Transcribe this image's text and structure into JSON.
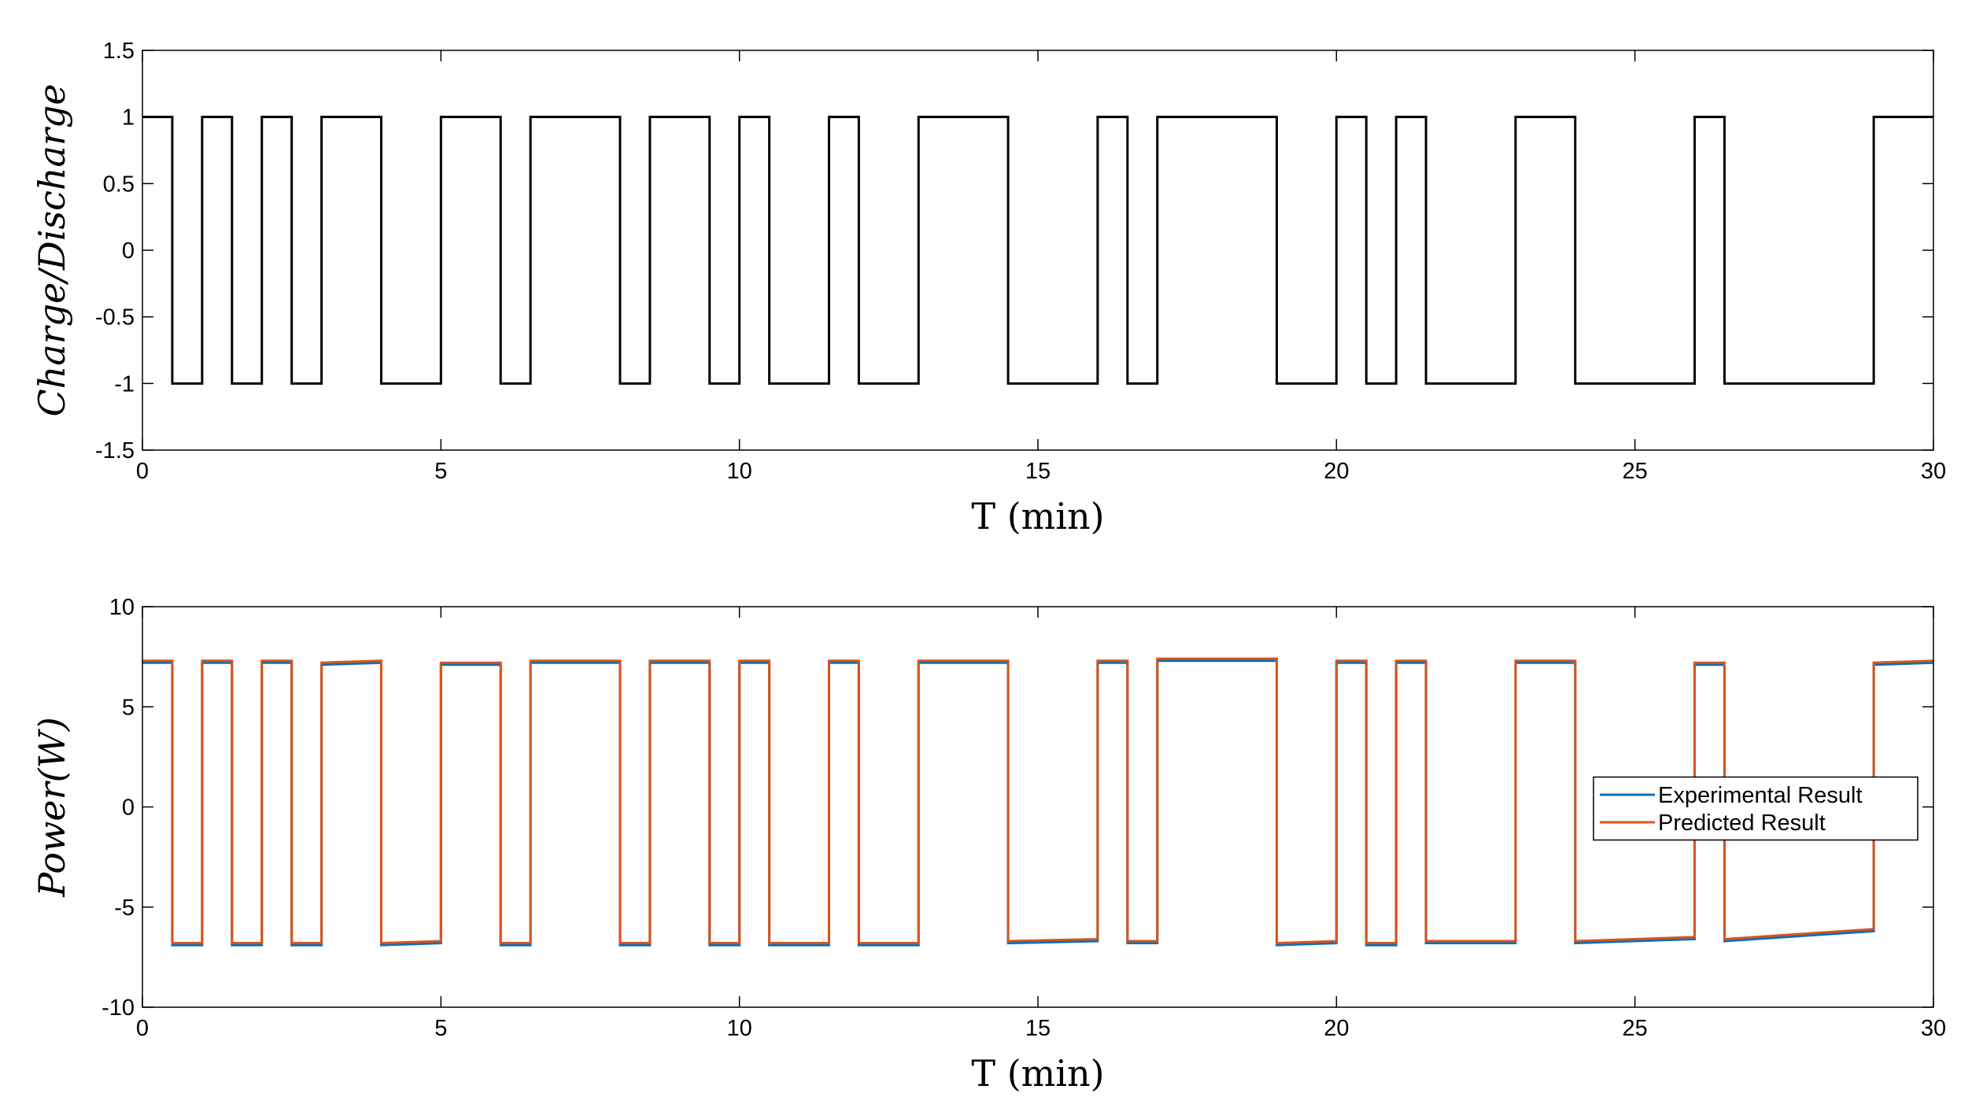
{
  "chart_data": [
    {
      "type": "line",
      "xlabel": "T (min)",
      "ylabel": "Charge/Discharge",
      "x": [
        0,
        0.5,
        0.5,
        1,
        1,
        1.5,
        1.5,
        2,
        2,
        2.5,
        2.5,
        3,
        3,
        4,
        4,
        5,
        5,
        6,
        6,
        6.5,
        6.5,
        8,
        8,
        8.5,
        8.5,
        9.5,
        9.5,
        10,
        10,
        10.5,
        10.5,
        11.5,
        11.5,
        12,
        12,
        13,
        13,
        14.5,
        14.5,
        16,
        16,
        16.5,
        16.5,
        17,
        17,
        19,
        19,
        20,
        20,
        20.5,
        20.5,
        21,
        21,
        21.5,
        21.5,
        23,
        23,
        24,
        24,
        26,
        26,
        26.5,
        26.5,
        29,
        29,
        30
      ],
      "series": [
        {
          "color": "#000000",
          "values": [
            1,
            1,
            -1,
            -1,
            1,
            1,
            -1,
            -1,
            1,
            1,
            -1,
            -1,
            1,
            1,
            -1,
            -1,
            1,
            1,
            -1,
            -1,
            1,
            1,
            -1,
            -1,
            1,
            1,
            -1,
            -1,
            1,
            1,
            -1,
            -1,
            1,
            1,
            -1,
            -1,
            1,
            1,
            -1,
            -1,
            1,
            1,
            -1,
            -1,
            1,
            1,
            -1,
            -1,
            1,
            1,
            -1,
            -1,
            1,
            1,
            -1,
            -1,
            1,
            1,
            -1,
            -1,
            1,
            1,
            -1,
            -1,
            1,
            1
          ]
        }
      ],
      "xlim": [
        0,
        30
      ],
      "xticks": [
        0,
        5,
        10,
        15,
        20,
        25,
        30
      ],
      "ylim": [
        -1.5,
        1.5
      ],
      "yticks": [
        -1.5,
        -1,
        -0.5,
        0,
        0.5,
        1,
        1.5
      ]
    },
    {
      "type": "line",
      "xlabel": "T (min)",
      "ylabel": "Power(W)",
      "x": [
        0,
        0.5,
        0.5,
        1,
        1,
        1.5,
        1.5,
        2,
        2,
        2.5,
        2.5,
        3,
        3,
        4,
        4,
        5,
        5,
        6,
        6,
        6.5,
        6.5,
        8,
        8,
        8.5,
        8.5,
        9.5,
        9.5,
        10,
        10,
        10.5,
        10.5,
        11.5,
        11.5,
        12,
        12,
        13,
        13,
        14.5,
        14.5,
        16,
        16,
        16.5,
        16.5,
        17,
        17,
        19,
        19,
        20,
        20,
        20.5,
        20.5,
        21,
        21,
        21.5,
        21.5,
        23,
        23,
        24,
        24,
        26,
        26,
        26.5,
        26.5,
        29,
        29,
        30
      ],
      "series": [
        {
          "name": "Experimental Result",
          "color": "#0072bd",
          "values": [
            7.2,
            7.2,
            -6.9,
            -6.9,
            7.2,
            7.2,
            -6.9,
            -6.9,
            7.2,
            7.2,
            -6.9,
            -6.9,
            7.1,
            7.2,
            -6.9,
            -6.8,
            7.1,
            7.1,
            -6.9,
            -6.9,
            7.2,
            7.2,
            -6.9,
            -6.9,
            7.2,
            7.2,
            -6.9,
            -6.9,
            7.2,
            7.2,
            -6.9,
            -6.9,
            7.2,
            7.2,
            -6.9,
            -6.9,
            7.2,
            7.2,
            -6.8,
            -6.7,
            7.2,
            7.2,
            -6.8,
            -6.8,
            7.3,
            7.3,
            -6.9,
            -6.8,
            7.2,
            7.2,
            -6.9,
            -6.9,
            7.2,
            7.2,
            -6.8,
            -6.8,
            7.2,
            7.2,
            -6.8,
            -6.6,
            7.1,
            7.1,
            -6.7,
            -6.2,
            7.1,
            7.2
          ]
        },
        {
          "name": "Predicted Result",
          "color": "#d95319",
          "values": [
            7.3,
            7.3,
            -6.8,
            -6.8,
            7.3,
            7.3,
            -6.8,
            -6.8,
            7.3,
            7.3,
            -6.8,
            -6.8,
            7.2,
            7.3,
            -6.8,
            -6.7,
            7.2,
            7.2,
            -6.8,
            -6.8,
            7.3,
            7.3,
            -6.8,
            -6.8,
            7.3,
            7.3,
            -6.8,
            -6.8,
            7.3,
            7.3,
            -6.8,
            -6.8,
            7.3,
            7.3,
            -6.8,
            -6.8,
            7.3,
            7.3,
            -6.7,
            -6.6,
            7.3,
            7.3,
            -6.7,
            -6.7,
            7.4,
            7.4,
            -6.8,
            -6.7,
            7.3,
            7.3,
            -6.8,
            -6.8,
            7.3,
            7.3,
            -6.7,
            -6.7,
            7.3,
            7.3,
            -6.7,
            -6.5,
            7.2,
            7.2,
            -6.6,
            -6.1,
            7.2,
            7.3
          ]
        }
      ],
      "xlim": [
        0,
        30
      ],
      "xticks": [
        0,
        5,
        10,
        15,
        20,
        25,
        30
      ],
      "ylim": [
        -10,
        10
      ],
      "yticks": [
        -10,
        -5,
        0,
        5,
        10
      ],
      "legend": "east"
    }
  ]
}
